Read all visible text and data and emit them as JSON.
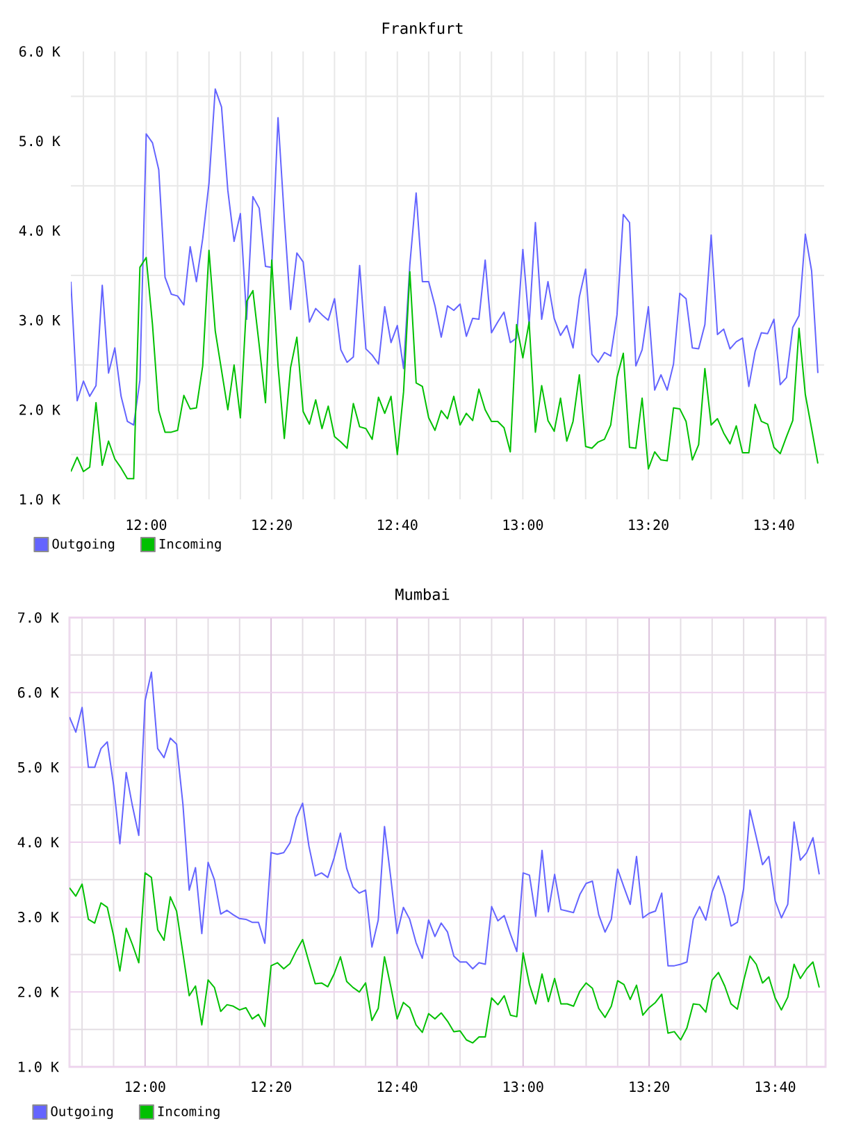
{
  "chart_data": [
    {
      "type": "line",
      "title": "Frankfurt",
      "x": [
        11.8,
        11.8167,
        11.8333,
        11.85,
        11.8667,
        11.8833,
        11.9,
        11.9167,
        11.9333,
        11.95,
        11.9667,
        11.9833,
        12.0,
        12.0167,
        12.0333,
        12.05,
        12.0667,
        12.0833,
        12.1,
        12.1167,
        12.1333,
        12.15,
        12.1667,
        12.1833,
        12.2,
        12.2167,
        12.2333,
        12.25,
        12.2667,
        12.2833,
        12.3,
        12.3167,
        12.3333,
        12.35,
        12.3667,
        12.3833,
        12.4,
        12.4167,
        12.4333,
        12.45,
        12.4667,
        12.4833,
        12.5,
        12.5167,
        12.5333,
        12.55,
        12.5667,
        12.5833,
        12.6,
        12.6167,
        12.6333,
        12.65,
        12.6667,
        12.6833,
        12.7,
        12.7167,
        12.7333,
        12.75,
        12.7667,
        12.7833,
        12.8,
        12.8167,
        12.8333,
        12.85,
        12.8667,
        12.8833,
        12.9,
        12.9167,
        12.9333,
        12.95,
        12.9667,
        12.9833,
        13.0,
        13.0167,
        13.0333,
        13.05,
        13.0667,
        13.0833,
        13.1,
        13.1167,
        13.1333,
        13.15,
        13.1667,
        13.1833,
        13.2,
        13.2167,
        13.2333,
        13.25,
        13.2667,
        13.2833,
        13.3,
        13.3167,
        13.3333,
        13.35,
        13.3667,
        13.3833,
        13.4,
        13.4167,
        13.4333,
        13.45,
        13.4667,
        13.4833,
        13.5,
        13.5167,
        13.5333,
        13.55,
        13.5667,
        13.5833,
        13.6,
        13.6167,
        13.6333,
        13.65,
        13.6667,
        13.6833,
        13.7,
        13.7167,
        13.7333,
        13.75,
        13.7667,
        13.7833
      ],
      "series": [
        {
          "name": "Outgoing",
          "color": "#6464ff",
          "values": [
            3430,
            2100,
            2320,
            2150,
            2270,
            3390,
            2410,
            2690,
            2150,
            1870,
            1830,
            2330,
            5080,
            4980,
            4680,
            3480,
            3290,
            3270,
            3170,
            3820,
            3430,
            3910,
            4530,
            5580,
            5380,
            4450,
            3880,
            4190,
            3010,
            4380,
            4250,
            3600,
            3590,
            5260,
            4140,
            3120,
            3750,
            3650,
            2980,
            3130,
            3060,
            3000,
            3240,
            2670,
            2530,
            2590,
            3610,
            2680,
            2610,
            2510,
            3150,
            2750,
            2940,
            2460,
            3620,
            4420,
            3430,
            3430,
            3160,
            2810,
            3160,
            3110,
            3180,
            2820,
            3020,
            3010,
            3670,
            2860,
            2980,
            3090,
            2750,
            2800,
            3790,
            2950,
            4090,
            3010,
            3430,
            3020,
            2830,
            2940,
            2690,
            3260,
            3570,
            2620,
            2530,
            2640,
            2600,
            3060,
            4180,
            4090,
            2490,
            2670,
            3150,
            2220,
            2390,
            2220,
            2510,
            3300,
            3240,
            2690,
            2680,
            2950,
            3950,
            2840,
            2900,
            2680,
            2760,
            2800,
            2260,
            2650,
            2860,
            2850,
            3010,
            2280,
            2360,
            2920,
            3050,
            3960,
            3550,
            2410
          ]
        },
        {
          "name": "Incoming",
          "color": "#00c000",
          "values": [
            1310,
            1470,
            1310,
            1360,
            2080,
            1380,
            1650,
            1450,
            1350,
            1230,
            1230,
            3590,
            3700,
            2950,
            1990,
            1750,
            1750,
            1770,
            2160,
            2010,
            2020,
            2490,
            3780,
            2880,
            2440,
            2000,
            2500,
            1910,
            3210,
            3330,
            2720,
            2080,
            3670,
            2490,
            1680,
            2470,
            2810,
            1980,
            1840,
            2110,
            1790,
            2040,
            1700,
            1640,
            1570,
            2070,
            1810,
            1790,
            1670,
            2140,
            1960,
            2150,
            1500,
            2200,
            3540,
            2300,
            2260,
            1910,
            1770,
            1990,
            1900,
            2150,
            1830,
            1960,
            1880,
            2230,
            2000,
            1870,
            1870,
            1800,
            1530,
            2950,
            2580,
            2980,
            1750,
            2270,
            1880,
            1760,
            2130,
            1650,
            1870,
            2390,
            1590,
            1570,
            1640,
            1670,
            1830,
            2360,
            2630,
            1580,
            1570,
            2130,
            1340,
            1530,
            1440,
            1430,
            2020,
            2010,
            1870,
            1440,
            1610,
            2460,
            1830,
            1900,
            1740,
            1620,
            1820,
            1520,
            1520,
            2060,
            1870,
            1840,
            1580,
            1510,
            1700,
            1880,
            2910,
            2170,
            1790,
            1400
          ]
        }
      ],
      "xlim": [
        11.8,
        13.8
      ],
      "xticks": [
        {
          "value": 11.8333,
          "label": null
        },
        {
          "value": 11.9167,
          "label": null
        },
        {
          "value": 12,
          "label": "12:00"
        },
        {
          "value": 12.0833,
          "label": null
        },
        {
          "value": 12.1667,
          "label": null
        },
        {
          "value": 12.25,
          "label": null
        },
        {
          "value": 12.3333,
          "label": "12:20"
        },
        {
          "value": 12.4167,
          "label": null
        },
        {
          "value": 12.5,
          "label": null
        },
        {
          "value": 12.5833,
          "label": null
        },
        {
          "value": 12.6667,
          "label": "12:40"
        },
        {
          "value": 12.75,
          "label": null
        },
        {
          "value": 12.8333,
          "label": null
        },
        {
          "value": 12.9167,
          "label": null
        },
        {
          "value": 13,
          "label": "13:00"
        },
        {
          "value": 13.0833,
          "label": null
        },
        {
          "value": 13.1667,
          "label": null
        },
        {
          "value": 13.25,
          "label": null
        },
        {
          "value": 13.3333,
          "label": "13:20"
        },
        {
          "value": 13.4167,
          "label": null
        },
        {
          "value": 13.5,
          "label": null
        },
        {
          "value": 13.5833,
          "label": null
        },
        {
          "value": 13.6667,
          "label": "13:40"
        },
        {
          "value": 13.75,
          "label": null
        }
      ],
      "ylim": [
        1000,
        6000
      ],
      "yticks": [
        {
          "value": 1000,
          "label": "1.0 K"
        },
        {
          "value": 1500,
          "label": null
        },
        {
          "value": 2000,
          "label": "2.0 K"
        },
        {
          "value": 2500,
          "label": null
        },
        {
          "value": 3000,
          "label": "3.0 K"
        },
        {
          "value": 3500,
          "label": null
        },
        {
          "value": 4000,
          "label": "4.0 K"
        },
        {
          "value": 4500,
          "label": null
        },
        {
          "value": 5000,
          "label": "5.0 K"
        },
        {
          "value": 5500,
          "label": null
        },
        {
          "value": 6000,
          "label": "6.0 K"
        }
      ],
      "grid": true,
      "legend": "bottom left"
    },
    {
      "type": "line",
      "title": "Mumbai",
      "x": [
        11.8,
        11.8167,
        11.8333,
        11.85,
        11.8667,
        11.8833,
        11.9,
        11.9167,
        11.9333,
        11.95,
        11.9667,
        11.9833,
        12.0,
        12.0167,
        12.0333,
        12.05,
        12.0667,
        12.0833,
        12.1,
        12.1167,
        12.1333,
        12.15,
        12.1667,
        12.1833,
        12.2,
        12.2167,
        12.2333,
        12.25,
        12.2667,
        12.2833,
        12.3,
        12.3167,
        12.3333,
        12.35,
        12.3667,
        12.3833,
        12.4,
        12.4167,
        12.4333,
        12.45,
        12.4667,
        12.4833,
        12.5,
        12.5167,
        12.5333,
        12.55,
        12.5667,
        12.5833,
        12.6,
        12.6167,
        12.6333,
        12.65,
        12.6667,
        12.6833,
        12.7,
        12.7167,
        12.7333,
        12.75,
        12.7667,
        12.7833,
        12.8,
        12.8167,
        12.8333,
        12.85,
        12.8667,
        12.8833,
        12.9,
        12.9167,
        12.9333,
        12.95,
        12.9667,
        12.9833,
        13.0,
        13.0167,
        13.0333,
        13.05,
        13.0667,
        13.0833,
        13.1,
        13.1167,
        13.1333,
        13.15,
        13.1667,
        13.1833,
        13.2,
        13.2167,
        13.2333,
        13.25,
        13.2667,
        13.2833,
        13.3,
        13.3167,
        13.3333,
        13.35,
        13.3667,
        13.3833,
        13.4,
        13.4167,
        13.4333,
        13.45,
        13.4667,
        13.4833,
        13.5,
        13.5167,
        13.5333,
        13.55,
        13.5667,
        13.5833,
        13.6,
        13.6167,
        13.6333,
        13.65,
        13.6667,
        13.6833,
        13.7,
        13.7167,
        13.7333,
        13.75,
        13.7667,
        13.7833
      ],
      "series": [
        {
          "name": "Outgoing",
          "color": "#6464ff",
          "values": [
            5670,
            5470,
            5800,
            5000,
            5000,
            5250,
            5340,
            4760,
            3980,
            4930,
            4480,
            4090,
            5890,
            6270,
            5250,
            5130,
            5390,
            5310,
            4510,
            3360,
            3660,
            2780,
            3730,
            3500,
            3040,
            3090,
            3030,
            2980,
            2970,
            2930,
            2930,
            2650,
            3860,
            3840,
            3860,
            3990,
            4330,
            4520,
            3950,
            3550,
            3590,
            3530,
            3790,
            4120,
            3650,
            3400,
            3320,
            3360,
            2600,
            2960,
            4210,
            3520,
            2780,
            3130,
            2970,
            2660,
            2450,
            2960,
            2740,
            2920,
            2800,
            2480,
            2400,
            2400,
            2310,
            2390,
            2370,
            3140,
            2950,
            3020,
            2770,
            2540,
            3590,
            3560,
            3010,
            3890,
            3070,
            3570,
            3100,
            3080,
            3060,
            3300,
            3450,
            3480,
            3030,
            2800,
            2970,
            3640,
            3400,
            3170,
            3810,
            2990,
            3050,
            3080,
            3320,
            2350,
            2350,
            2370,
            2400,
            2970,
            3140,
            2960,
            3340,
            3550,
            3280,
            2880,
            2930,
            3380,
            4430,
            4070,
            3700,
            3810,
            3220,
            2990,
            3170,
            4270,
            3760,
            3860,
            4060,
            3570
          ]
        },
        {
          "name": "Incoming",
          "color": "#00c000",
          "values": [
            3390,
            3280,
            3440,
            2970,
            2920,
            3190,
            3130,
            2750,
            2280,
            2850,
            2630,
            2390,
            3590,
            3530,
            2830,
            2690,
            3270,
            3080,
            2520,
            1950,
            2080,
            1560,
            2160,
            2060,
            1740,
            1830,
            1810,
            1760,
            1790,
            1640,
            1700,
            1540,
            2350,
            2390,
            2310,
            2380,
            2550,
            2700,
            2400,
            2110,
            2120,
            2070,
            2240,
            2470,
            2140,
            2060,
            2000,
            2120,
            1620,
            1780,
            2470,
            2070,
            1640,
            1860,
            1790,
            1560,
            1460,
            1710,
            1640,
            1720,
            1610,
            1470,
            1480,
            1360,
            1320,
            1400,
            1400,
            1920,
            1830,
            1950,
            1690,
            1670,
            2520,
            2100,
            1840,
            2240,
            1870,
            2180,
            1840,
            1840,
            1810,
            2010,
            2120,
            2050,
            1780,
            1660,
            1810,
            2150,
            2100,
            1900,
            2090,
            1690,
            1790,
            1860,
            1970,
            1450,
            1470,
            1360,
            1520,
            1840,
            1830,
            1730,
            2160,
            2260,
            2080,
            1840,
            1770,
            2150,
            2480,
            2370,
            2120,
            2200,
            1920,
            1760,
            1930,
            2370,
            2180,
            2310,
            2400,
            2060
          ]
        }
      ],
      "xlim": [
        11.8,
        13.8
      ],
      "xticks": [
        {
          "value": 11.8333,
          "label": null
        },
        {
          "value": 11.9167,
          "label": null
        },
        {
          "value": 12,
          "label": "12:00"
        },
        {
          "value": 12.0833,
          "label": null
        },
        {
          "value": 12.1667,
          "label": null
        },
        {
          "value": 12.25,
          "label": null
        },
        {
          "value": 12.3333,
          "label": "12:20"
        },
        {
          "value": 12.4167,
          "label": null
        },
        {
          "value": 12.5,
          "label": null
        },
        {
          "value": 12.5833,
          "label": null
        },
        {
          "value": 12.6667,
          "label": "12:40"
        },
        {
          "value": 12.75,
          "label": null
        },
        {
          "value": 12.8333,
          "label": null
        },
        {
          "value": 12.9167,
          "label": null
        },
        {
          "value": 13,
          "label": "13:00"
        },
        {
          "value": 13.0833,
          "label": null
        },
        {
          "value": 13.1667,
          "label": null
        },
        {
          "value": 13.25,
          "label": null
        },
        {
          "value": 13.3333,
          "label": "13:20"
        },
        {
          "value": 13.4167,
          "label": null
        },
        {
          "value": 13.5,
          "label": null
        },
        {
          "value": 13.5833,
          "label": null
        },
        {
          "value": 13.6667,
          "label": "13:40"
        },
        {
          "value": 13.75,
          "label": null
        }
      ],
      "ylim": [
        1000,
        7000
      ],
      "yticks": [
        {
          "value": 1000,
          "label": "1.0 K"
        },
        {
          "value": 1500,
          "label": null
        },
        {
          "value": 2000,
          "label": "2.0 K"
        },
        {
          "value": 2500,
          "label": null
        },
        {
          "value": 3000,
          "label": "3.0 K"
        },
        {
          "value": 3500,
          "label": null
        },
        {
          "value": 4000,
          "label": "4.0 K"
        },
        {
          "value": 4500,
          "label": null
        },
        {
          "value": 5000,
          "label": "5.0 K"
        },
        {
          "value": 5500,
          "label": null
        },
        {
          "value": 6000,
          "label": "6.0 K"
        },
        {
          "value": 6500,
          "label": null
        },
        {
          "value": 7000,
          "label": "7.0 K"
        }
      ],
      "grid": true,
      "legend": "bottom left"
    }
  ]
}
